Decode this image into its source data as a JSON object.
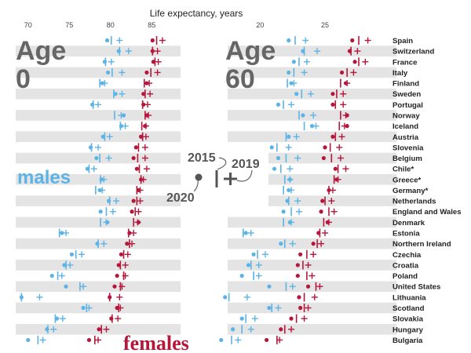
{
  "chart_data": {
    "type": "dot-plot",
    "title": "Life expectancy, years",
    "colors": {
      "males": "#5cb3e6",
      "females": "#b5173b",
      "band": "#e4e4e4"
    },
    "legend": {
      "y2015": "2015",
      "y2019": "2019",
      "y2020": "2020",
      "males_label": "males",
      "females_label": "females"
    },
    "countries": [
      "Spain",
      "Switzerland",
      "France",
      "Italy",
      "Finland",
      "Sweden",
      "Portugal",
      "Norway",
      "Iceland",
      "Austria",
      "Slovenia",
      "Belgium",
      "Chile*",
      "Greece*",
      "Germany*",
      "Netherlands",
      "England and Wales",
      "Denmark",
      "Estonia",
      "Northern Ireland",
      "Czechia",
      "Croatia",
      "Poland",
      "United States",
      "Lithuania",
      "Scotland",
      "Slovakia",
      "Hungary",
      "Bulgaria"
    ],
    "panels": [
      {
        "label_line1": "Age",
        "label_line2": "0",
        "xlim": [
          68.5,
          88.5
        ],
        "ticks": [
          70,
          75,
          80,
          85
        ],
        "males": {
          "y2015": [
            80.1,
            81.1,
            79.4,
            80.2,
            78.7,
            80.4,
            77.9,
            80.5,
            81.2,
            79.3,
            77.7,
            78.7,
            77.4,
            78.8,
            78.2,
            79.9,
            79.5,
            78.8,
            73.8,
            78.5,
            75.8,
            74.6,
            73.6,
            76.3,
            69.2,
            77.1,
            73.3,
            72.4,
            71.2
          ],
          "y2019": [
            81.1,
            82.2,
            80.1,
            81.4,
            79.3,
            81.4,
            78.5,
            81.3,
            81.8,
            79.9,
            78.5,
            79.8,
            78.0,
            79.2,
            79.0,
            80.7,
            80.3,
            79.5,
            74.6,
            79.2,
            76.5,
            75.1,
            74.1,
            76.7,
            71.4,
            77.4,
            74.2,
            73.1,
            71.8
          ],
          "y2020": [
            79.6,
            81.0,
            79.3,
            79.7,
            79.0,
            80.6,
            77.8,
            81.6,
            81.3,
            79.1,
            77.6,
            78.3,
            77.2,
            78.9,
            78.7,
            79.8,
            78.8,
            79.6,
            74.1,
            78.4,
            75.3,
            74.4,
            72.9,
            74.6,
            69.2,
            76.7,
            73.5,
            72.3,
            70.0
          ]
        },
        "females": {
          "y2015": [
            85.6,
            85.1,
            85.4,
            84.9,
            84.1,
            84.2,
            83.9,
            84.2,
            83.8,
            83.9,
            83.4,
            83.3,
            83.5,
            83.7,
            83.2,
            83.2,
            83.0,
            82.8,
            82.2,
            82.3,
            81.6,
            81.2,
            81.6,
            81.2,
            79.9,
            81.0,
            80.2,
            78.9,
            78.1
          ],
          "y2019": [
            86.3,
            85.7,
            85.8,
            85.7,
            84.7,
            84.8,
            84.5,
            84.6,
            84.3,
            84.3,
            84.2,
            84.2,
            84.4,
            84.0,
            83.6,
            83.6,
            83.4,
            83.3,
            82.8,
            82.6,
            82.1,
            81.8,
            81.8,
            81.4,
            81.1,
            81.2,
            80.9,
            79.5,
            78.5
          ],
          "y2020": [
            85.1,
            85.1,
            85.2,
            84.4,
            84.4,
            84.0,
            84.0,
            84.4,
            84.2,
            83.7,
            83.1,
            82.8,
            83.2,
            83.7,
            83.4,
            82.8,
            82.6,
            83.4,
            82.3,
            82.0,
            81.3,
            81.0,
            80.8,
            80.5,
            79.9,
            80.8,
            80.1,
            78.6,
            77.4
          ]
        }
      },
      {
        "label_line1": "Age",
        "label_line2": "60",
        "xlim": [
          17.5,
          30.5
        ],
        "ticks": [
          20,
          25
        ],
        "males": {
          "y2015": [
            22.7,
            23.4,
            23.0,
            22.6,
            22.1,
            23.2,
            21.8,
            23.0,
            23.4,
            22.0,
            21.3,
            22.0,
            21.6,
            21.9,
            21.8,
            22.2,
            22.4,
            21.8,
            18.7,
            21.9,
            19.8,
            19.3,
            19.5,
            22.0,
            17.6,
            20.9,
            18.9,
            18.6,
            17.8
          ],
          "y2019": [
            23.5,
            24.4,
            23.6,
            23.4,
            22.6,
            23.9,
            22.4,
            24.1,
            24.3,
            22.8,
            22.2,
            22.9,
            22.3,
            22.3,
            22.4,
            22.9,
            23.0,
            22.4,
            19.3,
            22.5,
            20.4,
            19.9,
            19.9,
            22.5,
            19.0,
            21.4,
            19.6,
            19.3,
            18.3
          ],
          "y2020": [
            22.2,
            23.3,
            22.6,
            22.2,
            22.4,
            22.8,
            21.4,
            23.3,
            24.0,
            22.2,
            20.9,
            21.4,
            21.1,
            22.3,
            22.2,
            22.1,
            21.8,
            22.3,
            18.9,
            21.6,
            19.5,
            19.1,
            18.6,
            20.7,
            17.3,
            20.7,
            18.6,
            17.9,
            17.0
          ]
        },
        "females": {
          "y2015": [
            27.6,
            27.0,
            27.6,
            26.7,
            26.2,
            25.9,
            25.8,
            26.2,
            26.1,
            25.8,
            25.4,
            25.5,
            26.0,
            25.7,
            25.3,
            25.0,
            25.3,
            24.9,
            24.6,
            24.4,
            23.6,
            23.3,
            23.6,
            24.3,
            23.4,
            23.4,
            22.8,
            21.9,
            21.3
          ],
          "y2019": [
            28.3,
            27.5,
            28.1,
            27.2,
            26.7,
            26.4,
            26.4,
            26.6,
            26.5,
            26.3,
            26.1,
            26.2,
            26.6,
            26.0,
            25.6,
            25.5,
            25.7,
            25.3,
            25.0,
            24.7,
            24.1,
            23.7,
            24.0,
            24.6,
            24.2,
            23.7,
            23.4,
            22.4,
            21.5
          ],
          "y2020": [
            27.1,
            26.9,
            27.3,
            26.3,
            26.6,
            25.6,
            25.6,
            26.7,
            26.7,
            25.6,
            25.0,
            24.9,
            25.8,
            25.9,
            25.3,
            24.8,
            24.7,
            25.2,
            24.5,
            24.1,
            23.1,
            22.9,
            22.9,
            23.7,
            23.0,
            23.1,
            22.4,
            21.6,
            20.5
          ]
        }
      }
    ]
  }
}
